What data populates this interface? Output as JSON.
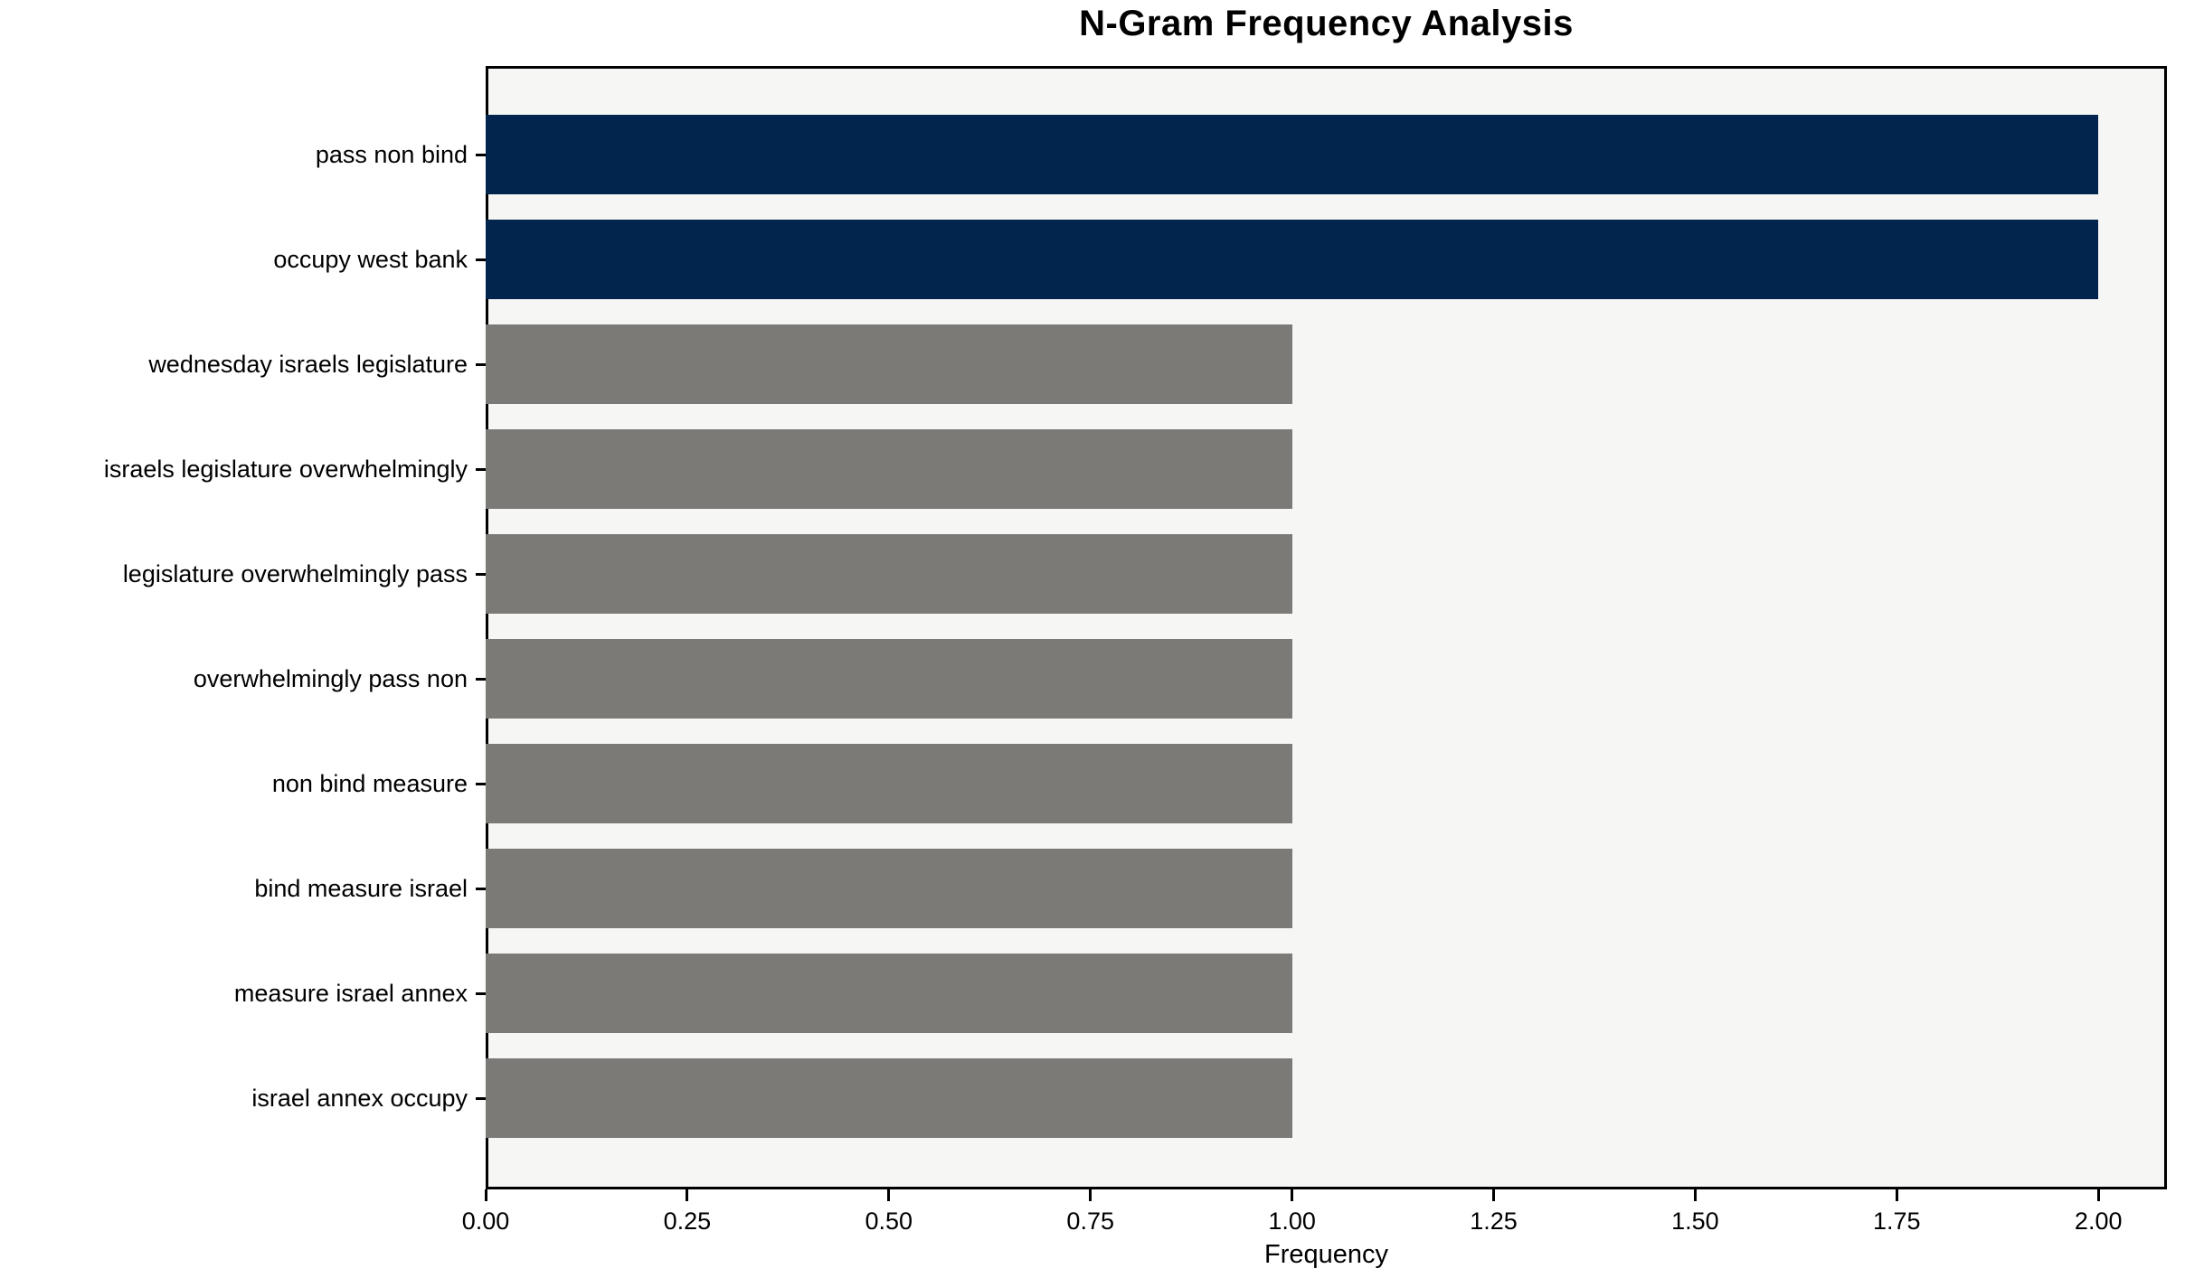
{
  "title": "N-Gram Frequency Analysis",
  "chart_data": {
    "type": "bar",
    "orientation": "horizontal",
    "title": "N-Gram Frequency Analysis",
    "xlabel": "Frequency",
    "ylabel": "",
    "categories": [
      "pass non bind",
      "occupy west bank",
      "wednesday israels legislature",
      "israels legislature overwhelmingly",
      "legislature overwhelmingly pass",
      "overwhelmingly pass non",
      "non bind measure",
      "bind measure israel",
      "measure israel annex",
      "israel annex occupy"
    ],
    "values": [
      2,
      2,
      1,
      1,
      1,
      1,
      1,
      1,
      1,
      1
    ],
    "bar_color_keys": [
      "highlight",
      "highlight",
      "default",
      "default",
      "default",
      "default",
      "default",
      "default",
      "default",
      "default"
    ],
    "xlim": [
      0,
      2.085
    ],
    "xticks": [
      0,
      0.25,
      0.5,
      0.75,
      1,
      1.25,
      1.5,
      1.75,
      2
    ],
    "xtick_labels": [
      "0.00",
      "0.25",
      "0.50",
      "0.75",
      "1.00",
      "1.25",
      "1.50",
      "1.75",
      "2.00"
    ],
    "grid": false,
    "legend_position": "none",
    "colors": {
      "highlight": "#02254E",
      "default": "#7B7A77",
      "plot_background": "#F6F6F5",
      "figure_background": "#FFFFFF",
      "axis": "#000000",
      "text": "#000000"
    }
  }
}
